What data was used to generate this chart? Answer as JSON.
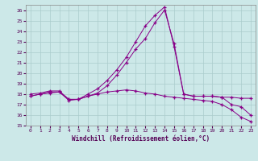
{
  "xlabel": "Windchill (Refroidissement éolien,°C)",
  "bg_color": "#cce8e8",
  "grid_color": "#aacccc",
  "line_color": "#880088",
  "xlim": [
    -0.5,
    23.5
  ],
  "ylim": [
    15,
    26.5
  ],
  "yticks": [
    15,
    16,
    17,
    18,
    19,
    20,
    21,
    22,
    23,
    24,
    25,
    26
  ],
  "xticks": [
    0,
    1,
    2,
    3,
    4,
    5,
    6,
    7,
    8,
    9,
    10,
    11,
    12,
    13,
    14,
    15,
    16,
    17,
    18,
    19,
    20,
    21,
    22,
    23
  ],
  "curve1_x": [
    0,
    1,
    2,
    3,
    4,
    5,
    6,
    7,
    8,
    9,
    10,
    11,
    12,
    13,
    14,
    15,
    16,
    17,
    18,
    19,
    20,
    21,
    22,
    23
  ],
  "curve1_y": [
    18.0,
    18.1,
    18.3,
    18.3,
    17.5,
    17.5,
    18.0,
    18.5,
    19.3,
    20.3,
    21.5,
    23.0,
    24.5,
    25.5,
    26.3,
    22.5,
    18.0,
    17.8,
    17.8,
    17.8,
    17.7,
    17.7,
    17.6,
    17.6
  ],
  "curve2_x": [
    0,
    1,
    2,
    3,
    4,
    5,
    6,
    7,
    8,
    9,
    10,
    11,
    12,
    13,
    14,
    15,
    16,
    17,
    18,
    19,
    20,
    21,
    22,
    23
  ],
  "curve2_y": [
    17.8,
    18.0,
    18.2,
    18.2,
    17.4,
    17.5,
    17.8,
    18.1,
    18.8,
    19.8,
    21.0,
    22.3,
    23.3,
    24.8,
    26.0,
    22.8,
    18.0,
    17.8,
    17.8,
    17.8,
    17.7,
    17.0,
    16.8,
    16.0
  ],
  "curve3_x": [
    0,
    1,
    2,
    3,
    4,
    5,
    6,
    7,
    8,
    9,
    10,
    11,
    12,
    13,
    14,
    15,
    16,
    17,
    18,
    19,
    20,
    21,
    22,
    23
  ],
  "curve3_y": [
    17.8,
    18.0,
    18.1,
    18.2,
    17.5,
    17.5,
    17.8,
    18.0,
    18.2,
    18.3,
    18.4,
    18.3,
    18.1,
    18.0,
    17.8,
    17.7,
    17.6,
    17.5,
    17.4,
    17.3,
    17.0,
    16.5,
    15.8,
    15.4
  ]
}
